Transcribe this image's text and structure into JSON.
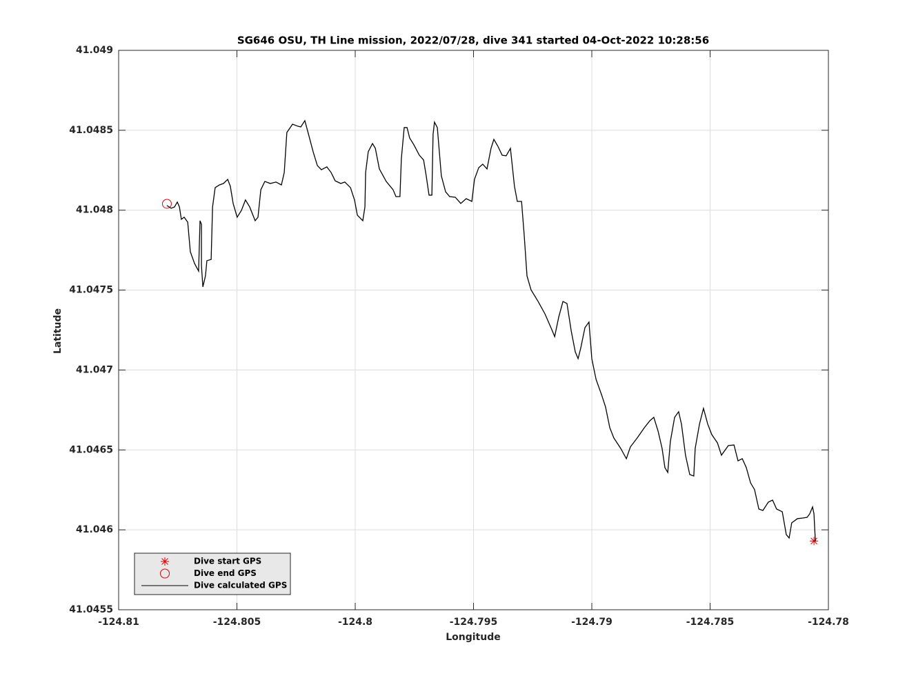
{
  "chart_data": {
    "type": "line",
    "title": "SG646 OSU, TH Line mission, 2022/07/28, dive 341 started 04-Oct-2022 10:28:56",
    "xlabel": "Longitude",
    "ylabel": "Latitude",
    "xlim": [
      -124.81,
      -124.78
    ],
    "xticks": [
      -124.81,
      -124.805,
      -124.8,
      -124.795,
      -124.79,
      -124.785,
      -124.78
    ],
    "ylim": [
      41.0455,
      41.049
    ],
    "yticks": [
      41.0455,
      41.046,
      41.0465,
      41.047,
      41.0475,
      41.048,
      41.0485,
      41.049
    ],
    "grid": true,
    "legend": "southwest",
    "series": [
      {
        "name": "Dive start GPS",
        "color": "#e00000",
        "marker": "*",
        "x": [
          -124.78061
        ],
        "values": [
          41.04593
        ]
      },
      {
        "name": "Dive end GPS",
        "color": "#e00000",
        "marker": "o",
        "x": [
          -124.80796
        ],
        "values": [
          41.04804
        ]
      },
      {
        "name": "Dive calculated GPS",
        "color": "#000000",
        "marker": "none",
        "x": [
          -124.80796,
          -124.80778,
          -124.80764,
          -124.80752,
          -124.80743,
          -124.80735,
          -124.80723,
          -124.80708,
          -124.80697,
          -124.80679,
          -124.80662,
          -124.80656,
          -124.8065,
          -124.8065,
          -124.80644,
          -124.80633,
          -124.80627,
          -124.80609,
          -124.80603,
          -124.80592,
          -124.80574,
          -124.80557,
          -124.80539,
          -124.80528,
          -124.80516,
          -124.80499,
          -124.80481,
          -124.80464,
          -124.80446,
          -124.80423,
          -124.80411,
          -124.80399,
          -124.80382,
          -124.80359,
          -124.80335,
          -124.80312,
          -124.803,
          -124.80289,
          -124.80265,
          -124.80242,
          -124.8023,
          -124.80213,
          -124.80201,
          -124.80178,
          -124.8016,
          -124.80143,
          -124.8012,
          -124.80102,
          -124.80085,
          -124.80061,
          -124.80044,
          -124.8002,
          -124.80003,
          -124.79991,
          -124.79968,
          -124.79959,
          -124.79956,
          -124.79945,
          -124.79927,
          -124.79915,
          -124.79898,
          -124.79869,
          -124.7984,
          -124.79828,
          -124.79811,
          -124.79805,
          -124.79793,
          -124.79781,
          -124.7977,
          -124.79752,
          -124.79729,
          -124.79711,
          -124.797,
          -124.79688,
          -124.79676,
          -124.79671,
          -124.79665,
          -124.79653,
          -124.79636,
          -124.79618,
          -124.79601,
          -124.79577,
          -124.79554,
          -124.79531,
          -124.79507,
          -124.79496,
          -124.79478,
          -124.79461,
          -124.79443,
          -124.79426,
          -124.79414,
          -124.79397,
          -124.79379,
          -124.79362,
          -124.79344,
          -124.79327,
          -124.79315,
          -124.79297,
          -124.79286,
          -124.79274,
          -124.79257,
          -124.79227,
          -124.79198,
          -124.79169,
          -124.79157,
          -124.7914,
          -124.79122,
          -124.79105,
          -124.79087,
          -124.7907,
          -124.79058,
          -124.79047,
          -124.79029,
          -124.79012,
          -124.79,
          -124.78982,
          -124.78959,
          -124.78942,
          -124.78924,
          -124.78907,
          -124.78878,
          -124.78854,
          -124.78837,
          -124.78808,
          -124.78778,
          -124.78755,
          -124.78738,
          -124.7872,
          -124.78703,
          -124.78691,
          -124.78679,
          -124.78668,
          -124.7865,
          -124.78633,
          -124.78621,
          -124.78604,
          -124.78586,
          -124.78569,
          -124.78563,
          -124.78545,
          -124.78528,
          -124.7851,
          -124.78493,
          -124.78469,
          -124.78452,
          -124.78423,
          -124.78399,
          -124.78382,
          -124.78364,
          -124.78347,
          -124.78329,
          -124.78312,
          -124.78294,
          -124.78277,
          -124.78254,
          -124.78236,
          -124.78219,
          -124.78195,
          -124.78178,
          -124.78166,
          -124.78155,
          -124.78131,
          -124.78108,
          -124.7809,
          -124.78079,
          -124.78067,
          -124.78061,
          -124.78055
        ],
        "values": [
          41.048029,
          41.048012,
          41.04802,
          41.048051,
          41.04802,
          41.047943,
          41.047956,
          41.047925,
          41.04774,
          41.047666,
          41.047619,
          41.047934,
          41.047912,
          41.047654,
          41.04752,
          41.047589,
          41.047684,
          41.047692,
          41.04802,
          41.048141,
          41.048158,
          41.048167,
          41.048193,
          41.04815,
          41.048042,
          41.047956,
          41.047999,
          41.048064,
          41.04802,
          41.047934,
          41.047956,
          41.048128,
          41.04818,
          41.048167,
          41.048176,
          41.048158,
          41.048236,
          41.048486,
          41.048538,
          41.048525,
          41.048521,
          41.04856,
          41.048495,
          41.048366,
          41.048279,
          41.048253,
          41.048271,
          41.048236,
          41.048184,
          41.048167,
          41.048176,
          41.048141,
          41.048064,
          41.047969,
          41.047934,
          41.04802,
          41.048236,
          41.048366,
          41.048417,
          41.048387,
          41.048258,
          41.04818,
          41.048128,
          41.048085,
          41.048085,
          41.048322,
          41.048517,
          41.048517,
          41.048452,
          41.048409,
          41.048344,
          41.048314,
          41.048215,
          41.048094,
          41.048094,
          41.048474,
          41.048551,
          41.048517,
          41.048215,
          41.048115,
          41.048085,
          41.048081,
          41.048042,
          41.048072,
          41.048055,
          41.048193,
          41.048266,
          41.048288,
          41.048258,
          41.048387,
          41.048443,
          41.0484,
          41.048344,
          41.04834,
          41.048387,
          41.04815,
          41.048055,
          41.048055,
          41.047848,
          41.047589,
          41.047502,
          41.047429,
          41.047351,
          41.047252,
          41.047209,
          41.04733,
          41.047429,
          41.047416,
          41.047244,
          41.047114,
          41.047071,
          41.047136,
          41.047265,
          41.0473,
          41.047071,
          41.046941,
          41.046846,
          41.046769,
          41.046639,
          41.046575,
          41.04651,
          41.046445,
          41.046519,
          41.046575,
          41.046639,
          41.046682,
          41.046704,
          41.046618,
          41.04651,
          41.046389,
          41.046359,
          41.046553,
          41.046704,
          41.046739,
          41.046661,
          41.046467,
          41.046346,
          41.046337,
          41.04651,
          41.046661,
          41.04676,
          41.046661,
          41.046596,
          41.046544,
          41.046467,
          41.046527,
          41.046531,
          41.046432,
          41.046445,
          41.046389,
          41.046294,
          41.046251,
          41.04613,
          41.046121,
          41.046173,
          41.046186,
          41.04613,
          41.046113,
          41.04597,
          41.045949,
          41.046044,
          41.04607,
          41.046074,
          41.046078,
          41.0461,
          41.046143,
          41.0461,
          41.045927
        ]
      }
    ]
  }
}
